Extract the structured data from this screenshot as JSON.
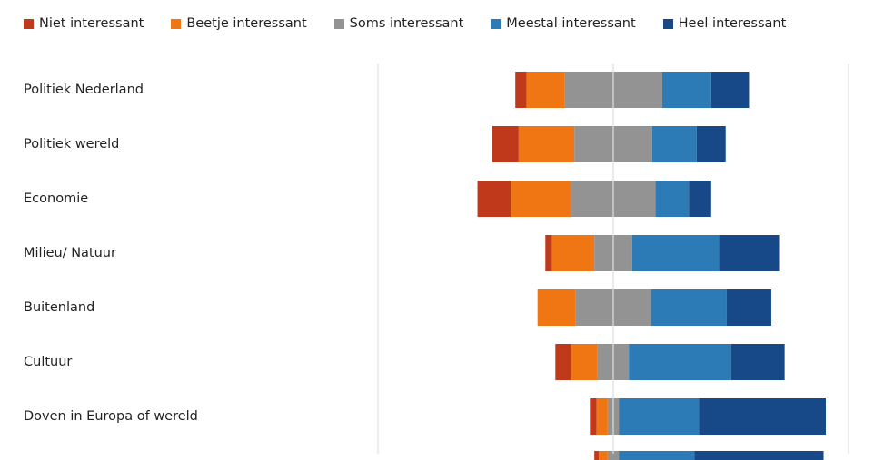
{
  "chart_data": {
    "type": "bar",
    "orientation": "horizontal",
    "stacked": "diverging",
    "legend_position": "top",
    "grid": false,
    "categories": [
      "Politiek Nederland",
      "Politiek wereld",
      "Economie",
      "Milieu/ Natuur",
      "Buitenland",
      "Cultuur",
      "Doven in Europa of wereld"
    ],
    "series": [
      {
        "name": "Niet interessant",
        "color": "#C0391B",
        "values": [
          2.5,
          6,
          7.5,
          1.5,
          0,
          3.5,
          1.5
        ]
      },
      {
        "name": "Beetje interessant",
        "color": "#F07614",
        "values": [
          8.5,
          12.5,
          13.5,
          9.5,
          8.5,
          6,
          2.5
        ]
      },
      {
        "name": "Soms interessant",
        "color": "#939393",
        "values": [
          22,
          17.5,
          19,
          8.5,
          17,
          7,
          2.5
        ]
      },
      {
        "name": "Meestal interessant",
        "color": "#2C7BB6",
        "values": [
          11,
          10,
          7.5,
          19.5,
          17,
          23,
          18
        ]
      },
      {
        "name": "Heel interessant",
        "color": "#174887",
        "values": [
          8.5,
          6.5,
          5,
          13.5,
          10,
          12,
          28.5
        ]
      }
    ],
    "center_split": "Soms interessant",
    "xlim": [
      -52,
      52
    ]
  }
}
